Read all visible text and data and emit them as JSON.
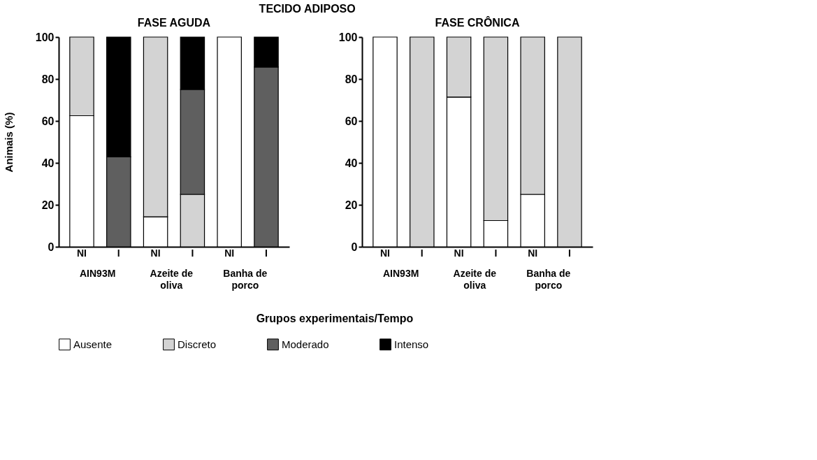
{
  "chart_data": [
    {
      "type": "bar",
      "title": "FASE AGUDA",
      "ylabel": "Animais (%)",
      "xlabel": "Grupos experimentais/Tempo",
      "stacked": true,
      "legend": "bottom",
      "grid": false,
      "categories": [
        "NI",
        "I",
        "NI",
        "I",
        "NI",
        "I"
      ],
      "ylim": [
        0,
        100
      ],
      "yticks": [
        0,
        20,
        40,
        60,
        80,
        100
      ],
      "annotations": [
        "TECIDO ADIPOSO",
        "AIN93M",
        "Azeite de oliva",
        "Banha de porco"
      ],
      "series": [
        {
          "name": "Ausente",
          "color": "#ffffff",
          "values": [
            62.5,
            null,
            14.3,
            null,
            100,
            null
          ]
        },
        {
          "name": "Discreto",
          "color": "#d3d3d3",
          "values": [
            37.5,
            null,
            85.7,
            25,
            null,
            null
          ]
        },
        {
          "name": "Moderado",
          "color": "#5f5f5f",
          "values": [
            null,
            42.9,
            null,
            50,
            null,
            85.7
          ]
        },
        {
          "name": "Intenso",
          "color": "#000000",
          "values": [
            null,
            57.1,
            null,
            25,
            null,
            14.3
          ]
        }
      ]
    },
    {
      "type": "bar",
      "title": "FASE CRÔNICA",
      "stacked": true,
      "legend": "bottom",
      "grid": false,
      "categories": [
        "NI",
        "I",
        "NI",
        "I",
        "NI",
        "I"
      ],
      "ylim": [
        0,
        100
      ],
      "yticks": [
        0,
        20,
        40,
        60,
        80,
        100
      ],
      "annotations": [
        "AIN93M",
        "Azeite de oliva",
        "Banha de porco"
      ],
      "series": [
        {
          "name": "Ausente",
          "color": "#ffffff",
          "values": [
            100,
            null,
            71.4,
            12.5,
            25,
            null
          ]
        },
        {
          "name": "Discreto",
          "color": "#d3d3d3",
          "values": [
            null,
            100,
            28.6,
            87.5,
            75,
            100
          ]
        },
        {
          "name": "Moderado",
          "color": "#5f5f5f",
          "values": [
            null,
            null,
            null,
            null,
            null,
            null
          ]
        },
        {
          "name": "Intenso",
          "color": "#000000",
          "values": [
            null,
            null,
            null,
            null,
            null,
            null
          ]
        }
      ]
    }
  ]
}
